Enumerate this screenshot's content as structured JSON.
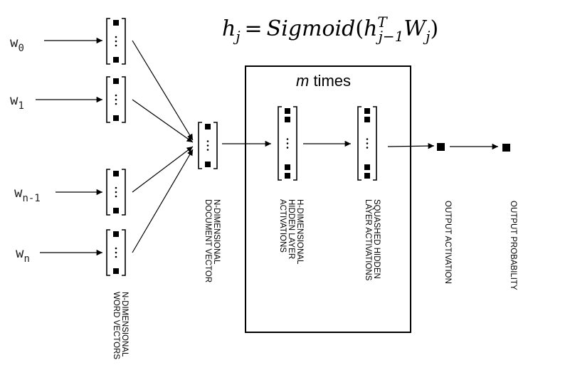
{
  "formula": {
    "lhs": "h",
    "lhs_sub": "j",
    "eq": "=",
    "func": "Sigmoid",
    "open": "(",
    "h": "h",
    "h_sup": "T",
    "h_sub": "j−1",
    "w": "W",
    "w_sub": "j",
    "close": ")"
  },
  "inputs": [
    {
      "base": "w",
      "sub": "0"
    },
    {
      "base": "w",
      "sub": "1"
    },
    {
      "base": "w",
      "sub": "n-1"
    },
    {
      "base": "w",
      "sub": "n"
    }
  ],
  "loop_box": {
    "var": "m",
    "rest": " times"
  },
  "labels": {
    "word_vectors": [
      "N-DIMENSIONAL",
      "WORD VECTORS"
    ],
    "doc_vector": [
      "N-DIMENSIONAL",
      "DOCUMENT VECTOR"
    ],
    "hidden": [
      "H-DIMENSIONAL",
      "HIDDEN LAYER",
      "ACTIVATIONS"
    ],
    "squashed": [
      "SQUASHED HIDDEN",
      "LAYER ACTIVATIONS"
    ],
    "output_activation": [
      "OUTPUT ACTIVATION"
    ],
    "output_probability": [
      "OUTPUT PROBABILITY"
    ]
  }
}
